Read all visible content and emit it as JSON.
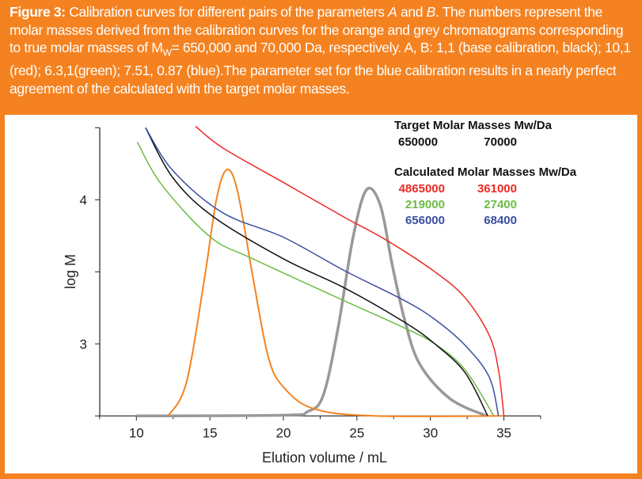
{
  "caption": {
    "label": "Figure 3:",
    "text_parts": [
      " Calibration curves for different pairs of the parameters ",
      "A",
      " and ",
      "B",
      ". The numbers represent the molar masses derived from the calibration curves for the orange and grey chromatograms corresponding to true molar masses of M",
      "W",
      "= 650,000 and 70,000 Da, respectively. A, B: 1,1 (base calibration, black); 10,1 (red); 6.3,1(green); 7.51, 0.87 (blue).The parameter set for the blue calibration results in a nearly perfect agreement of the calculated with the target molar masses."
    ]
  },
  "colors": {
    "frame": "#f58220",
    "black": "#111111",
    "red": "#ee2a24",
    "green": "#6cbd45",
    "blue": "#3a4fa0",
    "orange": "#f58220",
    "grey": "#999999"
  },
  "chart_data": {
    "type": "line",
    "xlabel": "Elution volume / mL",
    "ylabel": "log M",
    "xlim": [
      7.5,
      37.5
    ],
    "ylim": [
      2.5,
      4.5
    ],
    "xticks": [
      "10",
      "15",
      "20",
      "25",
      "30",
      "35"
    ],
    "yticks": [
      "3",
      "4"
    ],
    "grid": false,
    "series": [
      {
        "color": "red",
        "x": [
          14.02,
          15.87,
          20.0,
          24.12,
          27.0,
          30.3,
          32.36,
          34.0,
          34.63,
          35.0
        ],
        "y": [
          4.51,
          4.36,
          4.12,
          3.88,
          3.72,
          3.5,
          3.32,
          3.06,
          2.82,
          2.5
        ]
      },
      {
        "color": "green",
        "x": [
          10.06,
          11.75,
          15.05,
          17.93,
          24.12,
          28.24,
          30.3,
          32.36,
          34.32
        ],
        "y": [
          4.4,
          4.1,
          3.74,
          3.59,
          3.3,
          3.11,
          3.0,
          2.82,
          2.5
        ]
      },
      {
        "color": "blue",
        "x": [
          10.62,
          12.5,
          15.87,
          20.0,
          24.12,
          28.24,
          30.3,
          32.36,
          34.0,
          34.63
        ],
        "y": [
          4.5,
          4.2,
          3.91,
          3.74,
          3.51,
          3.3,
          3.17,
          2.99,
          2.77,
          2.5
        ]
      },
      {
        "color": "black",
        "x": [
          10.62,
          12.5,
          15.26,
          20.0,
          24.12,
          28.24,
          30.3,
          32.36,
          33.9
        ],
        "y": [
          4.5,
          4.15,
          3.88,
          3.59,
          3.39,
          3.15,
          3.0,
          2.8,
          2.5
        ]
      },
      {
        "color": "orange",
        "x": [
          12.16,
          13.4,
          14.64,
          15.46,
          16.18,
          16.9,
          17.93,
          18.97,
          20.0,
          22.06,
          26.2,
          35.0
        ],
        "y": [
          2.5,
          2.73,
          3.46,
          4.01,
          4.21,
          4.05,
          3.46,
          2.91,
          2.7,
          2.55,
          2.5,
          2.5
        ]
      },
      {
        "color": "grey",
        "x": [
          10.0,
          20.0,
          21.65,
          22.7,
          23.7,
          24.74,
          25.66,
          26.6,
          27.4,
          28.24,
          29.27,
          31.33,
          33.8
        ],
        "y": [
          2.5,
          2.505,
          2.53,
          2.64,
          3.1,
          3.74,
          4.07,
          3.96,
          3.55,
          3.17,
          2.86,
          2.62,
          2.5
        ]
      }
    ],
    "legend": {
      "target_title": "Target Molar Masses Mw/Da",
      "target_values": [
        "650000",
        "70000"
      ],
      "calculated_title": "Calculated Molar Masses Mw/Da",
      "calculated_rows": [
        {
          "color": "red",
          "values": [
            "4865000",
            "361000"
          ]
        },
        {
          "color": "green",
          "values": [
            "219000",
            "27400"
          ]
        },
        {
          "color": "blue",
          "values": [
            "656000",
            "68400"
          ]
        }
      ]
    }
  }
}
